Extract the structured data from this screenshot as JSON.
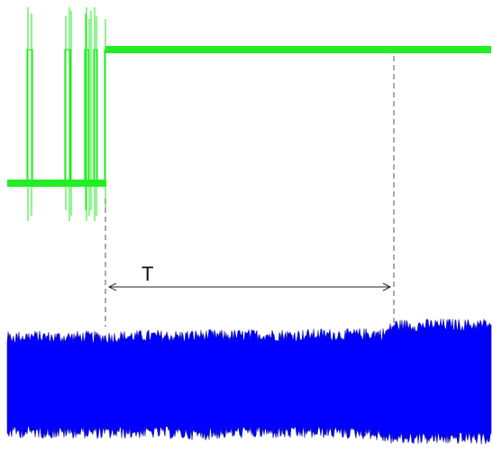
{
  "chart_data": {
    "type": "line",
    "title": "",
    "xlabel": "",
    "ylabel": "",
    "grid": false,
    "series": [
      {
        "kind": "digital-trace",
        "color": "#22ee22",
        "x": [
          0,
          0.04,
          0.04,
          0.12,
          0.12,
          0.22,
          0.22,
          0.32,
          0.32,
          0.38,
          0.38,
          0.41,
          0.41,
          0.45,
          0.45,
          0.49,
          0.49,
          0.53,
          0.53,
          0.57,
          0.57,
          0.61,
          0.61,
          0.66,
          0.66,
          0.72,
          0.72,
          0.8,
          0.8,
          0.9,
          0.9,
          0.98,
          0.98,
          1
        ],
        "y": [
          0,
          0,
          1,
          1,
          0,
          0,
          0,
          0,
          1,
          1,
          0,
          0,
          1,
          1,
          0,
          0,
          1,
          1,
          0,
          0,
          1,
          1,
          0,
          0,
          1,
          1,
          0,
          0,
          1,
          1,
          0,
          0,
          1,
          1
        ]
      },
      {
        "kind": "noise-envelope",
        "color": "#0000ff",
        "x": [
          0,
          0.05,
          0.1,
          0.15,
          0.2,
          0.25,
          0.3,
          0.35,
          0.4,
          0.45,
          0.5,
          0.55,
          0.6,
          0.65,
          0.7,
          0.75,
          0.78,
          0.8,
          0.85,
          0.9,
          0.95,
          1
        ],
        "upper": [
          0.8,
          0.82,
          0.8,
          0.81,
          0.8,
          0.82,
          0.83,
          0.82,
          0.84,
          0.83,
          0.84,
          0.85,
          0.84,
          0.86,
          0.85,
          0.87,
          0.88,
          1.05,
          1.04,
          1.06,
          1.05,
          1.06
        ],
        "lower": [
          -0.85,
          -0.84,
          -0.86,
          -0.85,
          -0.87,
          -0.86,
          -0.85,
          -0.87,
          -0.9,
          -0.86,
          -0.85,
          -0.86,
          -0.87,
          -0.85,
          -0.86,
          -0.87,
          -0.95,
          -0.98,
          -0.97,
          -0.98,
          -0.97,
          -0.98
        ]
      }
    ],
    "annotation": {
      "label": "T",
      "type": "time-interval"
    }
  }
}
